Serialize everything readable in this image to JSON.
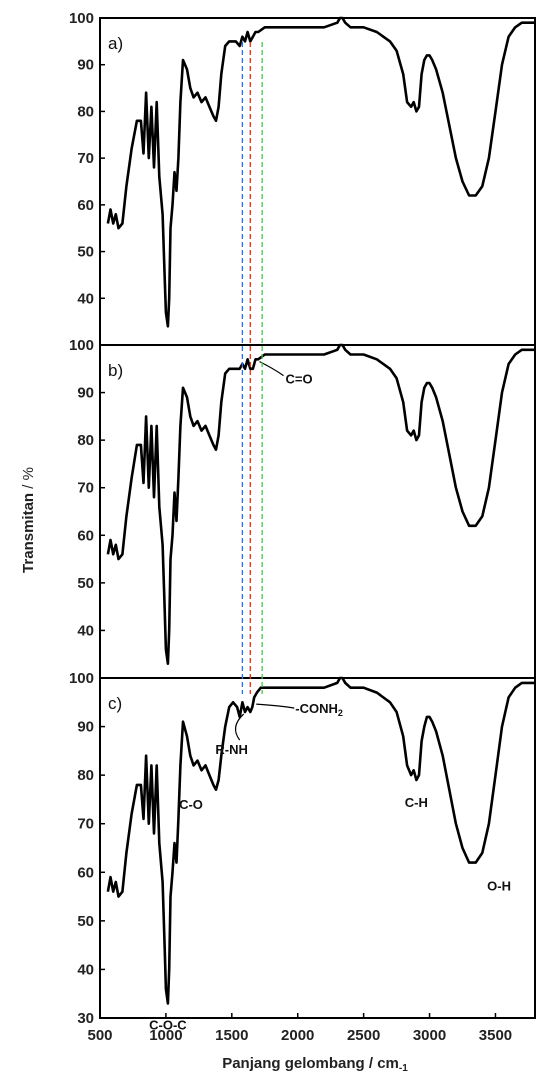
{
  "chart_data": [
    {
      "type": "line",
      "panel_label": "a)",
      "x_range": [
        500,
        3800
      ],
      "ylim": [
        30,
        100
      ],
      "y_ticks": [
        "40",
        "50",
        "60",
        "70",
        "80",
        "90",
        "100"
      ],
      "series": [
        {
          "x": [
            560,
            580,
            600,
            620,
            640,
            670,
            700,
            740,
            780,
            810,
            830,
            850,
            870,
            890,
            910,
            930,
            950,
            975,
            990,
            1000,
            1015,
            1025,
            1035,
            1050,
            1065,
            1080,
            1095,
            1110,
            1130,
            1160,
            1185,
            1210,
            1240,
            1270,
            1300,
            1330,
            1360,
            1380,
            1400,
            1420,
            1450,
            1480,
            1500,
            1530,
            1560,
            1580,
            1600,
            1620,
            1640,
            1660,
            1680,
            1700,
            1750,
            1800,
            1900,
            2000,
            2100,
            2200,
            2300,
            2320,
            2340,
            2360,
            2400,
            2500,
            2600,
            2700,
            2750,
            2800,
            2830,
            2860,
            2880,
            2900,
            2920,
            2940,
            2960,
            2980,
            3000,
            3020,
            3050,
            3100,
            3150,
            3200,
            3250,
            3300,
            3350,
            3400,
            3450,
            3500,
            3550,
            3600,
            3650,
            3700,
            3750,
            3800
          ],
          "y": [
            56,
            59,
            56,
            58,
            55,
            56,
            64,
            72,
            78,
            78,
            71,
            84,
            70,
            81,
            68,
            82,
            66,
            58,
            45,
            37,
            34,
            40,
            55,
            60,
            67,
            63,
            70,
            82,
            91,
            89,
            85,
            83,
            84,
            82,
            83,
            81,
            79,
            78,
            81,
            88,
            94,
            95,
            95,
            95,
            94,
            96,
            95,
            97,
            95,
            96,
            97,
            97,
            98,
            98,
            98,
            98,
            98,
            98,
            99,
            100,
            100,
            99,
            98,
            98,
            97,
            95,
            93,
            88,
            82,
            81,
            82,
            80,
            81,
            88,
            91,
            92,
            92,
            91,
            89,
            84,
            77,
            70,
            65,
            62,
            62,
            64,
            70,
            80,
            90,
            96,
            98,
            99,
            99,
            99
          ]
        }
      ]
    },
    {
      "type": "line",
      "panel_label": "b)",
      "x_range": [
        500,
        3800
      ],
      "ylim": [
        30,
        100
      ],
      "y_ticks": [
        "40",
        "50",
        "60",
        "70",
        "80",
        "90",
        "100"
      ],
      "series": [
        {
          "x": [
            560,
            580,
            600,
            620,
            640,
            670,
            700,
            740,
            780,
            810,
            830,
            850,
            870,
            890,
            910,
            930,
            950,
            975,
            990,
            1000,
            1015,
            1025,
            1035,
            1050,
            1065,
            1080,
            1095,
            1110,
            1130,
            1160,
            1185,
            1210,
            1240,
            1270,
            1300,
            1330,
            1360,
            1380,
            1400,
            1420,
            1450,
            1480,
            1500,
            1530,
            1560,
            1580,
            1600,
            1620,
            1640,
            1660,
            1680,
            1700,
            1750,
            1800,
            1900,
            2000,
            2100,
            2200,
            2300,
            2320,
            2340,
            2360,
            2400,
            2500,
            2600,
            2700,
            2750,
            2800,
            2830,
            2860,
            2880,
            2900,
            2920,
            2940,
            2960,
            2980,
            3000,
            3020,
            3050,
            3100,
            3150,
            3200,
            3250,
            3300,
            3350,
            3400,
            3450,
            3500,
            3550,
            3600,
            3650,
            3700,
            3750,
            3800
          ],
          "y": [
            56,
            59,
            56,
            58,
            55,
            56,
            64,
            72,
            79,
            79,
            71,
            85,
            70,
            83,
            68,
            83,
            66,
            58,
            45,
            36,
            33,
            40,
            55,
            60,
            69,
            63,
            72,
            83,
            91,
            89,
            85,
            83,
            84,
            82,
            83,
            81,
            79,
            78,
            81,
            88,
            94,
            95,
            95,
            95,
            95,
            96,
            95,
            97,
            95,
            95,
            97,
            97,
            98,
            98,
            98,
            98,
            98,
            98,
            99,
            100,
            100,
            99,
            98,
            98,
            97,
            95,
            93,
            88,
            82,
            81,
            82,
            80,
            81,
            88,
            91,
            92,
            92,
            91,
            89,
            84,
            77,
            70,
            65,
            62,
            62,
            64,
            70,
            80,
            90,
            96,
            98,
            99,
            99,
            99
          ]
        }
      ],
      "annotations": [
        {
          "text": "C=O",
          "x": 1680,
          "y": 96.5
        }
      ]
    },
    {
      "type": "line",
      "panel_label": "c)",
      "x_range": [
        500,
        3800
      ],
      "ylim": [
        30,
        100
      ],
      "y_ticks": [
        "30",
        "40",
        "50",
        "60",
        "70",
        "80",
        "90",
        "100"
      ],
      "x_ticks": [
        "500",
        "1000",
        "1500",
        "2000",
        "2500",
        "3000",
        "3500"
      ],
      "xlabel_main": "Panjang gelombang / cm",
      "xlabel_sub": "-1",
      "series": [
        {
          "x": [
            560,
            580,
            600,
            620,
            640,
            670,
            700,
            740,
            780,
            810,
            830,
            850,
            870,
            890,
            910,
            930,
            950,
            975,
            990,
            1000,
            1015,
            1025,
            1035,
            1050,
            1065,
            1080,
            1095,
            1110,
            1130,
            1160,
            1185,
            1210,
            1240,
            1270,
            1300,
            1330,
            1360,
            1380,
            1400,
            1420,
            1450,
            1480,
            1510,
            1540,
            1560,
            1580,
            1600,
            1620,
            1640,
            1655,
            1670,
            1690,
            1720,
            1760,
            1800,
            1900,
            2000,
            2100,
            2200,
            2300,
            2320,
            2340,
            2360,
            2400,
            2500,
            2600,
            2700,
            2750,
            2800,
            2830,
            2860,
            2880,
            2900,
            2920,
            2940,
            2960,
            2980,
            3000,
            3020,
            3050,
            3100,
            3150,
            3200,
            3250,
            3300,
            3350,
            3400,
            3450,
            3500,
            3550,
            3600,
            3650,
            3700,
            3750,
            3800
          ],
          "y": [
            56,
            59,
            56,
            58,
            55,
            56,
            64,
            72,
            78,
            78,
            71,
            84,
            70,
            82,
            68,
            82,
            66,
            58,
            45,
            36,
            33,
            40,
            55,
            60,
            66,
            62,
            71,
            82,
            91,
            88,
            84,
            82,
            83,
            81,
            82,
            80,
            78,
            77,
            79,
            84,
            90,
            94,
            95,
            94,
            92,
            95,
            93,
            94,
            93,
            94,
            96,
            97,
            98,
            98,
            98,
            98,
            98,
            98,
            98,
            99,
            100,
            100,
            99,
            98,
            98,
            97,
            95,
            93,
            88,
            82,
            80,
            81,
            79,
            80,
            87,
            90,
            92,
            92,
            91,
            89,
            84,
            77,
            70,
            65,
            62,
            62,
            64,
            70,
            80,
            90,
            96,
            98,
            99,
            99,
            99
          ]
        }
      ],
      "annotations": [
        {
          "text": "-CONH",
          "sub": "2",
          "x": 1640,
          "y": 94
        },
        {
          "text": "R-NH",
          "x": 1590,
          "y": 93
        },
        {
          "text": "C-O",
          "x": 1380,
          "y": 78
        },
        {
          "text": "C-H",
          "x": 2900,
          "y": 79
        },
        {
          "text": "O-H",
          "x": 3300,
          "y": 62
        },
        {
          "text": "C-O-C",
          "x": 1015,
          "y": 33
        }
      ]
    }
  ],
  "ylabel_main": "Transmitan",
  "ylabel_unit": " / %",
  "reference_lines": [
    {
      "x": 1580,
      "color": "#3a6fc4"
    },
    {
      "x": 1640,
      "color": "#c0392b"
    },
    {
      "x": 1730,
      "color": "#5cb85c"
    }
  ]
}
